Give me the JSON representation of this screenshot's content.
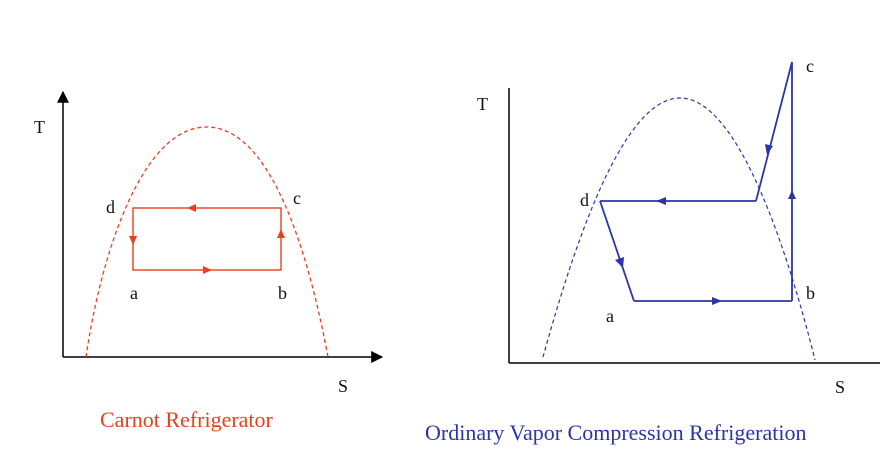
{
  "colors": {
    "axis": "#000000",
    "carnot": "#e8401c",
    "vapor": "#2b35a8"
  },
  "carnot": {
    "caption": "Carnot Refrigerator",
    "axis_y_label": "T",
    "axis_x_label": "S",
    "point_labels": {
      "a": "a",
      "b": "b",
      "c": "c",
      "d": "d"
    }
  },
  "vapor": {
    "caption": "Ordinary Vapor Compression Refrigeration",
    "axis_y_label": "T",
    "axis_x_label": "S",
    "point_labels": {
      "a": "a",
      "b": "b",
      "c": "c",
      "d": "d"
    }
  }
}
